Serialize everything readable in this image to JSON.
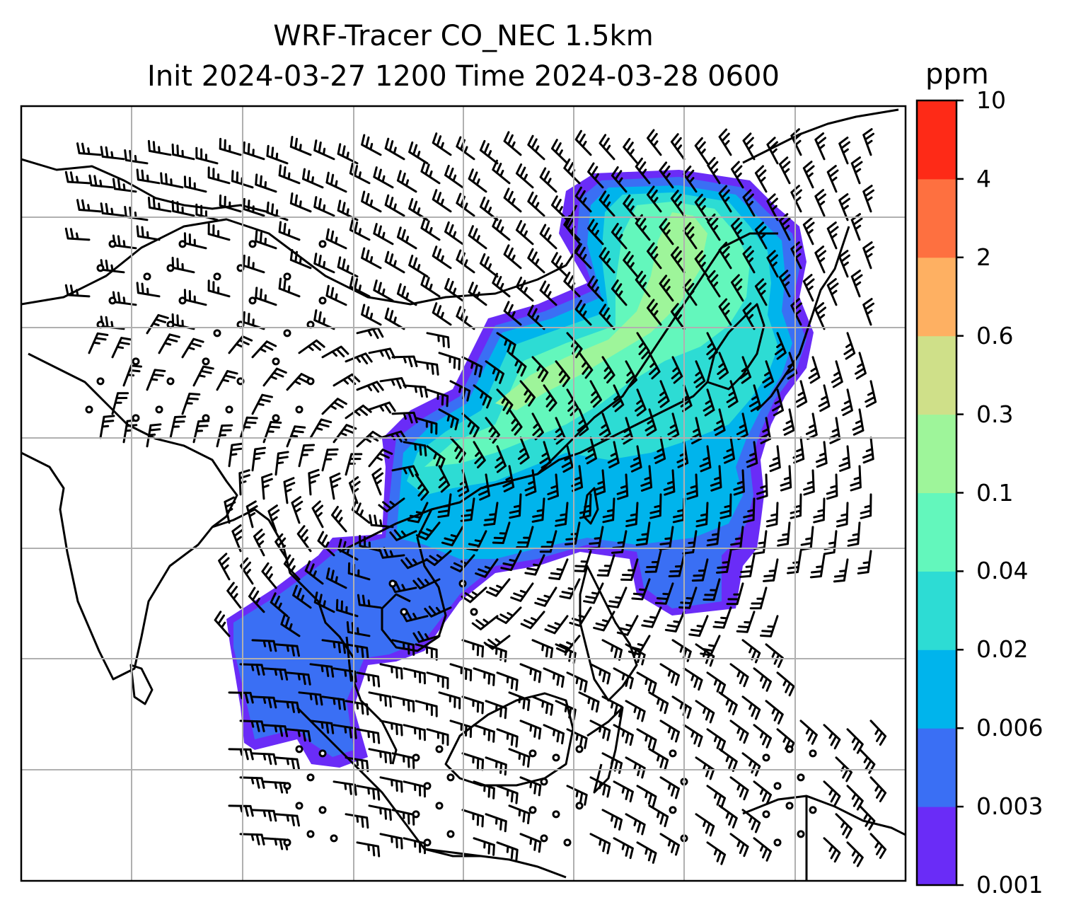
{
  "figure": {
    "title_line1": "WRF-Tracer CO_NEC 1.5km",
    "title_line2": "Init 2024-03-27 1200 Time 2024-03-28 0600",
    "colorbar_unit": "ppm",
    "colorbar_levels": [
      "0.001",
      "0.003",
      "0.006",
      "0.02",
      "0.04",
      "0.1",
      "0.3",
      "0.6",
      "2",
      "4",
      "10"
    ],
    "colorbar_colors": [
      "#6a2cf7",
      "#3a6ff4",
      "#00b4ec",
      "#2ddcd4",
      "#63f7bc",
      "#9ef59a",
      "#cfe089",
      "#feb062",
      "#fe7040",
      "#fe2a17"
    ],
    "field_colors": {
      "lowest": "#6a2cf7",
      "low": "#3a6ff4",
      "mid": "#00b4ec",
      "mid_high": "#2ddcd4",
      "high": "#63f7bc",
      "higher": "#9ef59a"
    },
    "grid_color": "#b0b0b0",
    "coastline_color": "#000000",
    "wind_barb_color": "#000000"
  }
}
